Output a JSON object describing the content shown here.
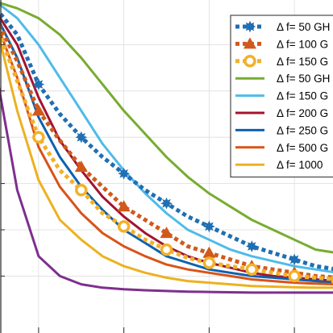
{
  "chart_data": {
    "type": "line",
    "title": "",
    "xlabel": "",
    "ylabel": "",
    "xlim": [
      0,
      8
    ],
    "ylim": [
      0,
      1
    ],
    "grid": true,
    "x_ticks": [
      1,
      3,
      5,
      7
    ],
    "y_ticks": [
      0.16,
      0.3,
      0.44,
      0.58,
      0.72,
      0.86
    ],
    "legend_position": "top-right",
    "x": [
      0,
      0.5,
      1,
      1.5,
      2,
      2.5,
      3,
      3.5,
      4,
      4.5,
      5,
      5.5,
      6,
      6.5,
      7,
      7.5,
      8
    ],
    "series": [
      {
        "name": "Δ f= 50 GH",
        "style": "dotted-marker",
        "marker": "star",
        "color": "#1f6fb4",
        "values": [
          0.97,
          0.89,
          0.74,
          0.65,
          0.58,
          0.52,
          0.47,
          0.42,
          0.38,
          0.34,
          0.31,
          0.28,
          0.25,
          0.23,
          0.21,
          0.19,
          0.18
        ]
      },
      {
        "name": "Δ f= 100 G",
        "style": "dotted-marker",
        "marker": "triangle",
        "color": "#d05a1c",
        "values": [
          0.94,
          0.81,
          0.66,
          0.57,
          0.49,
          0.43,
          0.37,
          0.33,
          0.29,
          0.25,
          0.23,
          0.21,
          0.19,
          0.18,
          0.17,
          0.16,
          0.155
        ]
      },
      {
        "name": "Δ f= 150 G",
        "style": "dotted-marker",
        "marker": "circle-dot",
        "color": "#f2b12a",
        "values": [
          0.92,
          0.75,
          0.58,
          0.48,
          0.42,
          0.35,
          0.31,
          0.27,
          0.24,
          0.215,
          0.2,
          0.19,
          0.18,
          0.17,
          0.16,
          0.155,
          0.15
        ]
      },
      {
        "name": "Δ f= 50 GH",
        "style": "solid",
        "color": "#77ac30",
        "values": [
          0.99,
          0.97,
          0.94,
          0.89,
          0.82,
          0.74,
          0.66,
          0.59,
          0.52,
          0.46,
          0.41,
          0.37,
          0.33,
          0.3,
          0.27,
          0.24,
          0.23
        ]
      },
      {
        "name": "Δ f= 150 G",
        "style": "solid",
        "color": "#4fbbe8",
        "values": [
          0.99,
          0.94,
          0.86,
          0.76,
          0.66,
          0.56,
          0.48,
          0.41,
          0.35,
          0.3,
          0.27,
          0.24,
          0.22,
          0.205,
          0.19,
          0.18,
          0.17
        ]
      },
      {
        "name": "Δ f= 200 G",
        "style": "solid",
        "color": "#a2142f",
        "values": [
          0.96,
          0.86,
          0.7,
          0.57,
          0.48,
          0.4,
          0.34,
          0.29,
          0.25,
          0.22,
          0.2,
          0.185,
          0.17,
          0.16,
          0.155,
          0.15,
          0.145
        ]
      },
      {
        "name": "Δ f= 250 G",
        "style": "solid",
        "color": "#0b62ae",
        "values": [
          0.95,
          0.82,
          0.64,
          0.52,
          0.43,
          0.36,
          0.3,
          0.26,
          0.22,
          0.2,
          0.18,
          0.17,
          0.16,
          0.155,
          0.15,
          0.145,
          0.14
        ]
      },
      {
        "name": "Δ f= 500 G",
        "style": "solid",
        "color": "#d95319",
        "values": [
          0.93,
          0.76,
          0.55,
          0.43,
          0.35,
          0.29,
          0.25,
          0.22,
          0.195,
          0.18,
          0.17,
          0.16,
          0.15,
          0.145,
          0.14,
          0.137,
          0.135
        ]
      },
      {
        "name": "Δ f= 1000",
        "style": "solid",
        "color": "#edb120",
        "values": [
          0.92,
          0.66,
          0.45,
          0.33,
          0.27,
          0.22,
          0.19,
          0.17,
          0.155,
          0.145,
          0.14,
          0.135,
          0.13,
          0.128,
          0.126,
          0.125,
          0.125
        ]
      },
      {
        "name": "",
        "style": "solid",
        "color": "#7e2f8e",
        "values": [
          0.78,
          0.42,
          0.22,
          0.16,
          0.135,
          0.125,
          0.12,
          0.117,
          0.115,
          0.113,
          0.112,
          0.111,
          0.11,
          0.11,
          0.11,
          0.11,
          0.11
        ]
      }
    ]
  }
}
